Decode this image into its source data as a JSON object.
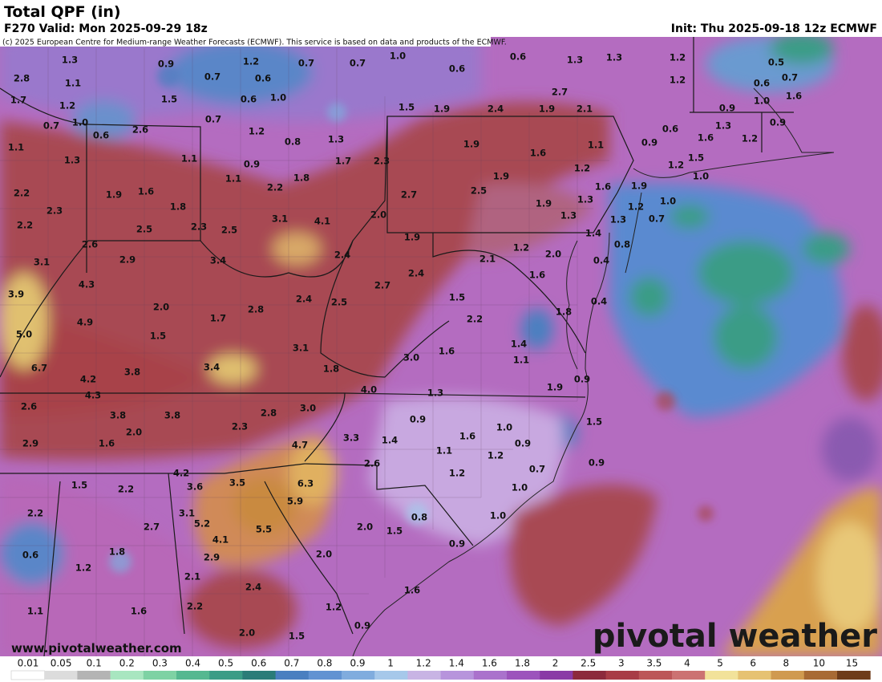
{
  "header": {
    "title": "Total QPF (in)",
    "valid": "F270 Valid: Mon 2025-09-29 18z",
    "init": "Init: Thu 2025-09-18 12z ECMWF",
    "credit": "(c) 2025 European Centre for Medium-range Weather Forecasts (ECMWF). This service is based on data and products of the ECMWF."
  },
  "watermark": {
    "url": "www.pivotalweather.com",
    "logo": "pivotal weather"
  },
  "legend": {
    "labels": [
      "0.01",
      "0.05",
      "0.1",
      "0.2",
      "0.3",
      "0.4",
      "0.5",
      "0.6",
      "0.7",
      "0.8",
      "0.9",
      "1",
      "1.2",
      "1.4",
      "1.6",
      "1.8",
      "2",
      "2.5",
      "3",
      "3.5",
      "4",
      "5",
      "6",
      "8",
      "10",
      "15"
    ],
    "colors": [
      "#ffffff",
      "#dcdcdc",
      "#b4b4b4",
      "#a8e6c0",
      "#7ed2a4",
      "#55b890",
      "#3a9c86",
      "#2a7c78",
      "#4a7fc0",
      "#6293d2",
      "#80acde",
      "#a6c8ea",
      "#c8b4e4",
      "#b794dc",
      "#aa72cc",
      "#9c54bc",
      "#8a3aa6",
      "#8c2a3c",
      "#a83c46",
      "#bc5658",
      "#cc7272",
      "#f2e29a",
      "#e6c272",
      "#d09a50",
      "#a86a34",
      "#6e3c1a"
    ]
  },
  "map_labels": [
    "1.3",
    "0.9",
    "1.2",
    "0.7",
    "0.7",
    "1.0",
    "0.6",
    "0.6",
    "1.3",
    "1.3",
    "1.2",
    "0.5",
    "2.8",
    "1.1",
    "0.7",
    "0.6",
    "1.2",
    "0.6",
    "0.7",
    "2.7",
    "1.7",
    "1.5",
    "0.6",
    "1.0",
    "1.2",
    "1.6",
    "1.0",
    "1.5",
    "1.9",
    "2.4",
    "1.9",
    "2.1",
    "0.9",
    "0.7",
    "1.0",
    "0.7",
    "0.6",
    "2.6",
    "1.2",
    "0.8",
    "0.6",
    "1.3",
    "0.9",
    "1.1",
    "1.3",
    "1.9",
    "1.6",
    "1.1",
    "0.9",
    "1.6",
    "1.2",
    "1.3",
    "1.1",
    "0.9",
    "1.7",
    "2.3",
    "1.2",
    "1.5",
    "1.1",
    "1.8",
    "1.9",
    "1.2",
    "1.0",
    "1.6",
    "1.9",
    "2.2",
    "1.9",
    "1.6",
    "2.2",
    "2.7",
    "2.5",
    "1.3",
    "1.0",
    "2.3",
    "1.8",
    "3.1",
    "4.1",
    "2.0",
    "1.9",
    "1.3",
    "1.2",
    "1.3",
    "0.7",
    "2.2",
    "2.5",
    "2.3",
    "2.5",
    "1.4",
    "2.6",
    "1.9",
    "1.2",
    "0.8",
    "2.0",
    "3.1",
    "2.9",
    "3.4",
    "2.4",
    "2.1",
    "0.4",
    "1.6",
    "2.4",
    "2.7",
    "4.3",
    "3.9",
    "1.5",
    "2.4",
    "2.5",
    "2.0",
    "2.8",
    "0.4",
    "1.8",
    "1.7",
    "2.2",
    "4.9",
    "5.0",
    "1.5",
    "1.4",
    "3.1",
    "1.6",
    "1.1",
    "3.0",
    "3.4",
    "3.8",
    "1.8",
    "6.7",
    "4.2",
    "0.9",
    "1.9",
    "4.0",
    "4.3",
    "1.3",
    "2.6",
    "3.0",
    "2.8",
    "3.8",
    "3.8",
    "0.9",
    "1.0",
    "1.5",
    "2.3",
    "2.0",
    "1.6",
    "3.3",
    "1.4",
    "0.9",
    "4.7",
    "2.9",
    "1.6",
    "1.1",
    "1.2",
    "2.6",
    "0.7",
    "0.9",
    "1.2",
    "4.2",
    "3.5",
    "6.3",
    "3.6",
    "1.5",
    "2.2",
    "1.0",
    "5.9",
    "3.1",
    "2.2",
    "0.8",
    "1.0",
    "5.2",
    "5.5",
    "2.7",
    "2.0",
    "1.5",
    "4.1",
    "1.8",
    "0.9",
    "0.6",
    "2.9",
    "2.0",
    "1.2",
    "2.1",
    "2.4",
    "1.6",
    "2.2",
    "1.2",
    "1.1",
    "1.6",
    "0.9",
    "2.0",
    "1.5"
  ]
}
